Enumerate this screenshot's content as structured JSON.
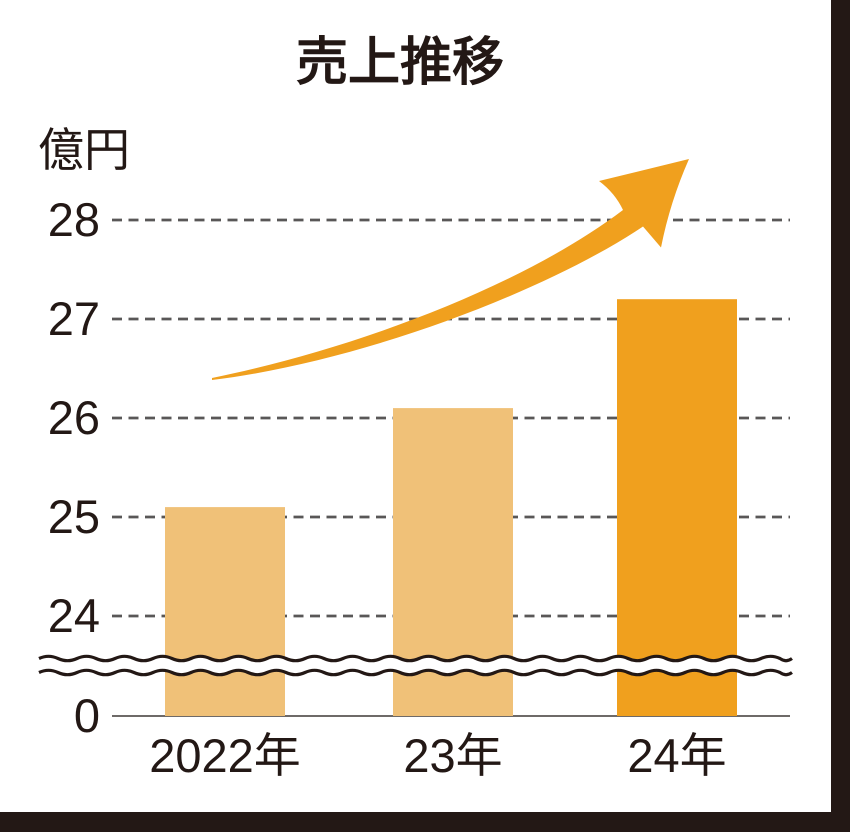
{
  "title": "売上推移",
  "colors": {
    "background": "#ffffff",
    "frame": "#231815",
    "text": "#231815",
    "grid": "#595757",
    "axis": "#6e6a68",
    "wave": "#231815",
    "arrow": "#f0a01e"
  },
  "chart_data": {
    "type": "bar",
    "title": "売上推移",
    "ylabel": "億円",
    "categories": [
      "2022年",
      "23年",
      "24年"
    ],
    "values": [
      25.1,
      26.1,
      27.2
    ],
    "bar_colors": [
      "#f0c178",
      "#f0c178",
      "#f0a01e"
    ],
    "yticks": [
      28,
      27,
      26,
      25,
      24
    ],
    "zero_label": "0",
    "axis_break": true,
    "grid": "dashed",
    "annotations": [
      "upward curved growth arrow"
    ]
  }
}
